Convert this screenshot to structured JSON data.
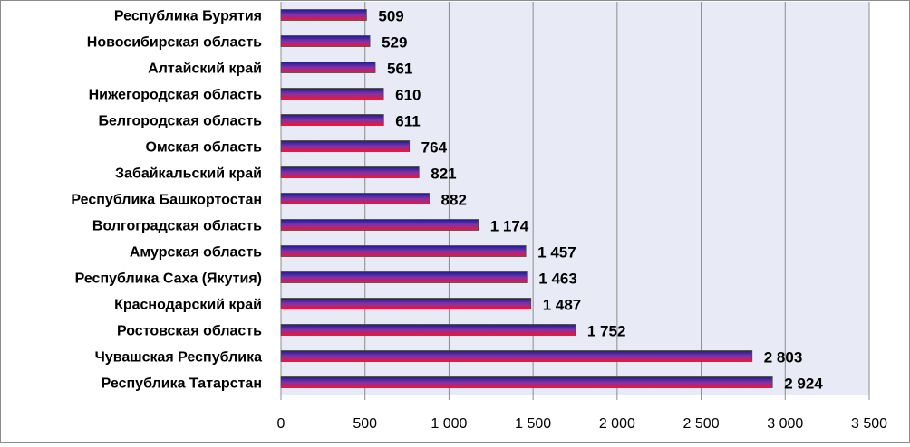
{
  "chart_data": {
    "type": "bar",
    "orientation": "horizontal",
    "title": "",
    "xlabel": "",
    "ylabel": "",
    "categories": [
      "Республика Бурятия",
      "Новосибирская область",
      "Алтайский край",
      "Нижегородская  область",
      "Белгородская область",
      "Омская область",
      "Забайкальский край",
      "Республика Башкортостан",
      "Волгоградская  область",
      "Амурская область",
      "Республика Саха (Якутия)",
      "Краснодарский край",
      "Ростовская  область",
      "Чувашская  Республика",
      "Республика Татарстан"
    ],
    "values": [
      509,
      529,
      561,
      610,
      611,
      764,
      821,
      882,
      1174,
      1457,
      1463,
      1487,
      1752,
      2803,
      2924
    ],
    "value_labels": [
      "509",
      "529",
      "561",
      "610",
      "611",
      "764",
      "821",
      "882",
      "1 174",
      "1 457",
      "1 463",
      "1 487",
      "1 752",
      "2 803",
      "2 924"
    ],
    "xlim": [
      0,
      3500
    ],
    "x_ticks": [
      0,
      500,
      1000,
      1500,
      2000,
      2500,
      3000,
      3500
    ],
    "x_tick_labels": [
      "0",
      "500",
      "1 000",
      "1 500",
      "2 000",
      "2 500",
      "3 000",
      "3 500"
    ],
    "grid": "vertical",
    "legend": "none",
    "colors": {
      "plot_background": "#e8ebf5",
      "gridline": "#8c8c8c",
      "bar_top": "#1a1a9e",
      "bar_mid": "#8a2fa0",
      "bar_bottom": "#f0162a",
      "bar_edge": "#4a4a4a"
    }
  }
}
